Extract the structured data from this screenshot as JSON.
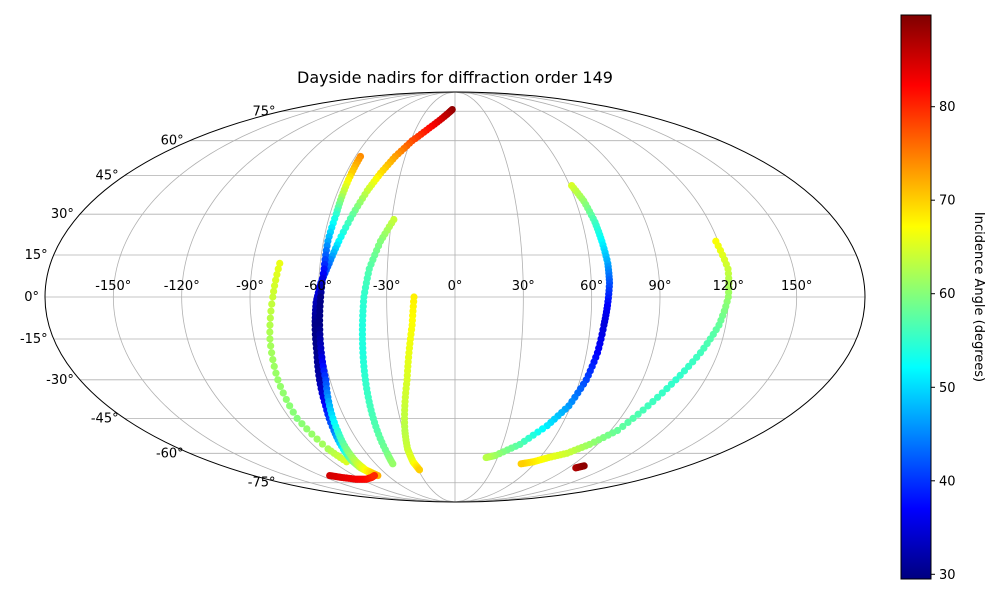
{
  "chart_data": {
    "type": "scatter",
    "projection": "mollweide",
    "title": "Dayside nadirs for diffraction order 149",
    "x_tick_labels": [
      "-150°",
      "-120°",
      "-90°",
      "-60°",
      "-30°",
      "0°",
      "30°",
      "60°",
      "90°",
      "120°",
      "150°"
    ],
    "x_ticks": [
      -150,
      -120,
      -90,
      -60,
      -30,
      0,
      30,
      60,
      90,
      120,
      150
    ],
    "y_tick_labels": [
      "-75°",
      "-60°",
      "-45°",
      "-30°",
      "-15°",
      "0°",
      "15°",
      "30°",
      "45°",
      "60°",
      "75°"
    ],
    "y_ticks": [
      -75,
      -60,
      -45,
      -30,
      -15,
      0,
      15,
      30,
      45,
      60,
      75
    ],
    "grid": true,
    "colorbar": {
      "label": "Incidence Angle (degrees)",
      "colormap": "jet",
      "range": [
        29.5,
        89.8
      ],
      "ticks": [
        30,
        40,
        50,
        60,
        70,
        80
      ]
    },
    "series": [
      {
        "points": [
          {
            "lon": -78,
            "lat": 12,
            "inc": 66
          },
          {
            "lon": -80,
            "lat": 0,
            "inc": 64
          },
          {
            "lon": -83,
            "lat": -15,
            "inc": 62
          },
          {
            "lon": -85,
            "lat": -30,
            "inc": 61
          },
          {
            "lon": -86,
            "lat": -45,
            "inc": 60
          },
          {
            "lon": -83,
            "lat": -58,
            "inc": 62
          },
          {
            "lon": -80,
            "lat": -64,
            "inc": 65
          }
        ]
      },
      {
        "points": [
          {
            "lon": -3,
            "lat": 76,
            "inc": 89
          },
          {
            "lon": -10,
            "lat": 72,
            "inc": 86
          },
          {
            "lon": -20,
            "lat": 66,
            "inc": 82
          },
          {
            "lon": -29,
            "lat": 60,
            "inc": 78
          },
          {
            "lon": -36,
            "lat": 53,
            "inc": 73
          },
          {
            "lon": -41,
            "lat": 46,
            "inc": 69
          },
          {
            "lon": -45,
            "lat": 39,
            "inc": 64
          },
          {
            "lon": -49,
            "lat": 30,
            "inc": 58
          },
          {
            "lon": -53,
            "lat": 20,
            "inc": 52
          },
          {
            "lon": -56,
            "lat": 12,
            "inc": 44
          },
          {
            "lon": -59,
            "lat": 5,
            "inc": 38
          },
          {
            "lon": -61,
            "lat": -2,
            "inc": 33
          },
          {
            "lon": -62,
            "lat": -10,
            "inc": 30
          },
          {
            "lon": -63,
            "lat": -20,
            "inc": 30
          },
          {
            "lon": -65,
            "lat": -30,
            "inc": 32
          },
          {
            "lon": -67,
            "lat": -40,
            "inc": 37
          },
          {
            "lon": -70,
            "lat": -50,
            "inc": 44
          },
          {
            "lon": -73,
            "lat": -58,
            "inc": 52
          },
          {
            "lon": -75,
            "lat": -63,
            "inc": 58
          },
          {
            "lon": -75,
            "lat": -67,
            "inc": 64
          },
          {
            "lon": -72,
            "lat": -70,
            "inc": 70
          }
        ]
      },
      {
        "points": [
          {
            "lon": -57,
            "lat": 53,
            "inc": 74
          },
          {
            "lon": -57,
            "lat": 46,
            "inc": 70
          },
          {
            "lon": -57,
            "lat": 38,
            "inc": 63
          },
          {
            "lon": -57,
            "lat": 30,
            "inc": 55
          },
          {
            "lon": -58,
            "lat": 20,
            "inc": 47
          },
          {
            "lon": -58,
            "lat": 10,
            "inc": 38
          },
          {
            "lon": -59,
            "lat": 0,
            "inc": 30
          },
          {
            "lon": -60,
            "lat": -10,
            "inc": 30
          },
          {
            "lon": -61,
            "lat": -20,
            "inc": 34
          },
          {
            "lon": -62,
            "lat": -30,
            "inc": 41
          },
          {
            "lon": -65,
            "lat": -40,
            "inc": 48
          },
          {
            "lon": -68,
            "lat": -50,
            "inc": 54
          },
          {
            "lon": -71,
            "lat": -58,
            "inc": 59
          },
          {
            "lon": -73,
            "lat": -64,
            "inc": 63
          },
          {
            "lon": -73,
            "lat": -68,
            "inc": 67
          },
          {
            "lon": -69,
            "lat": -71,
            "inc": 72
          }
        ]
      },
      {
        "points": [
          {
            "lon": -29,
            "lat": 28,
            "inc": 64
          },
          {
            "lon": -34,
            "lat": 20,
            "inc": 60
          },
          {
            "lon": -38,
            "lat": 10,
            "inc": 57
          },
          {
            "lon": -40,
            "lat": 0,
            "inc": 55
          },
          {
            "lon": -41,
            "lat": -10,
            "inc": 54
          },
          {
            "lon": -42,
            "lat": -20,
            "inc": 54
          },
          {
            "lon": -43,
            "lat": -30,
            "inc": 55
          },
          {
            "lon": -44,
            "lat": -40,
            "inc": 56
          },
          {
            "lon": -45,
            "lat": -50,
            "inc": 57
          },
          {
            "lon": -46,
            "lat": -60,
            "inc": 59
          },
          {
            "lon": -47,
            "lat": -65,
            "inc": 61
          }
        ]
      },
      {
        "points": [
          {
            "lon": -18,
            "lat": 0,
            "inc": 68
          },
          {
            "lon": -19,
            "lat": -10,
            "inc": 67
          },
          {
            "lon": -21,
            "lat": -20,
            "inc": 66
          },
          {
            "lon": -23,
            "lat": -30,
            "inc": 65
          },
          {
            "lon": -26,
            "lat": -40,
            "inc": 64
          },
          {
            "lon": -29,
            "lat": -50,
            "inc": 63
          },
          {
            "lon": -31,
            "lat": -58,
            "inc": 64
          },
          {
            "lon": -31,
            "lat": -64,
            "inc": 66
          },
          {
            "lon": -29,
            "lat": -68,
            "inc": 70
          }
        ]
      },
      {
        "points": [
          {
            "lon": -112,
            "lat": -71,
            "inc": 85
          },
          {
            "lon": -105,
            "lat": -72,
            "inc": 84
          },
          {
            "lon": -95,
            "lat": -73,
            "inc": 83
          },
          {
            "lon": -85,
            "lat": -73,
            "inc": 82
          },
          {
            "lon": -77,
            "lat": -72,
            "inc": 81
          },
          {
            "lon": -72,
            "lat": -71,
            "inc": 80
          }
        ]
      },
      {
        "points": [
          {
            "lon": 61,
            "lat": 41,
            "inc": 65
          },
          {
            "lon": 64,
            "lat": 35,
            "inc": 61
          },
          {
            "lon": 66,
            "lat": 27,
            "inc": 56
          },
          {
            "lon": 67,
            "lat": 20,
            "inc": 52
          },
          {
            "lon": 68,
            "lat": 12,
            "inc": 47
          },
          {
            "lon": 68,
            "lat": 5,
            "inc": 42
          },
          {
            "lon": 67,
            "lat": -3,
            "inc": 37
          },
          {
            "lon": 66,
            "lat": -10,
            "inc": 35
          },
          {
            "lon": 65,
            "lat": -20,
            "inc": 37
          },
          {
            "lon": 63,
            "lat": -30,
            "inc": 41
          },
          {
            "lon": 59,
            "lat": -40,
            "inc": 46
          },
          {
            "lon": 52,
            "lat": -48,
            "inc": 51
          },
          {
            "lon": 41,
            "lat": -56,
            "inc": 57
          },
          {
            "lon": 28,
            "lat": -61,
            "inc": 61
          },
          {
            "lon": 22,
            "lat": -62,
            "inc": 63
          }
        ]
      },
      {
        "points": [
          {
            "lon": 119,
            "lat": 20,
            "inc": 67
          },
          {
            "lon": 121,
            "lat": 10,
            "inc": 64
          },
          {
            "lon": 120,
            "lat": 0,
            "inc": 61
          },
          {
            "lon": 117,
            "lat": -10,
            "inc": 58
          },
          {
            "lon": 112,
            "lat": -20,
            "inc": 56
          },
          {
            "lon": 106,
            "lat": -30,
            "inc": 55
          },
          {
            "lon": 100,
            "lat": -40,
            "inc": 56
          },
          {
            "lon": 94,
            "lat": -50,
            "inc": 58
          },
          {
            "lon": 85,
            "lat": -56,
            "inc": 61
          },
          {
            "lon": 76,
            "lat": -60,
            "inc": 64
          },
          {
            "lon": 66,
            "lat": -62,
            "inc": 66
          },
          {
            "lon": 58,
            "lat": -64,
            "inc": 68
          },
          {
            "lon": 50,
            "lat": -65,
            "inc": 70
          }
        ]
      },
      {
        "points": [
          {
            "lon": 96,
            "lat": -67,
            "inc": 87
          },
          {
            "lon": 100,
            "lat": -66,
            "inc": 89
          }
        ]
      }
    ]
  }
}
